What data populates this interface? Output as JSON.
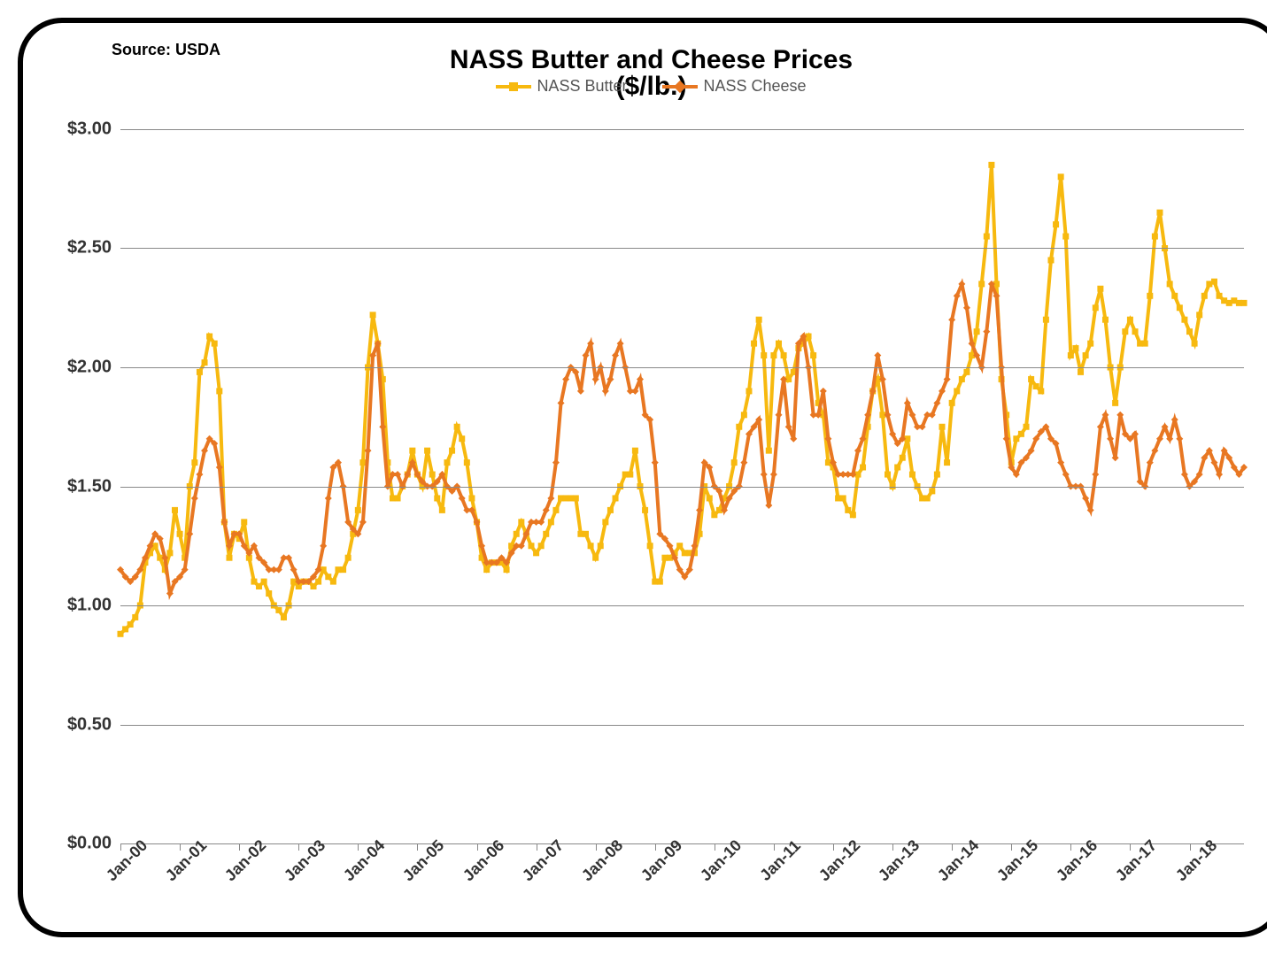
{
  "source_label": "Source: USDA",
  "title_line1": "NASS Butter and Cheese Prices",
  "title_line2": "($/lb.)",
  "legend": {
    "butter": "NASS Butter",
    "cheese": "NASS Cheese"
  },
  "chart": {
    "type": "line",
    "ylim": [
      0,
      3.0
    ],
    "ytick_step": 0.5,
    "ytick_labels": [
      "$0.00",
      "$0.50",
      "$1.00",
      "$1.50",
      "$2.00",
      "$2.50",
      "$3.00"
    ],
    "x_labels": [
      "Jan-00",
      "Jan-01",
      "Jan-02",
      "Jan-03",
      "Jan-04",
      "Jan-05",
      "Jan-06",
      "Jan-07",
      "Jan-08",
      "Jan-09",
      "Jan-10",
      "Jan-11",
      "Jan-12",
      "Jan-13",
      "Jan-14",
      "Jan-15",
      "Jan-16",
      "Jan-17",
      "Jan-18"
    ],
    "n_x_major": 19,
    "background_color": "#ffffff",
    "grid_color": "#888888",
    "border_color": "#000000",
    "border_radius": 50,
    "title_fontsize": 30,
    "label_fontsize": 20,
    "tick_fontsize": 18,
    "series": {
      "butter": {
        "color": "#f7b90f",
        "marker": "square",
        "marker_size": 7,
        "line_width": 4,
        "values": [
          0.88,
          0.9,
          0.92,
          0.95,
          1.0,
          1.18,
          1.22,
          1.25,
          1.2,
          1.15,
          1.22,
          1.4,
          1.3,
          1.2,
          1.5,
          1.6,
          1.98,
          2.02,
          2.13,
          2.1,
          1.9,
          1.35,
          1.2,
          1.3,
          1.28,
          1.35,
          1.2,
          1.1,
          1.08,
          1.1,
          1.05,
          1.0,
          0.98,
          0.95,
          1.0,
          1.1,
          1.08,
          1.1,
          1.1,
          1.08,
          1.1,
          1.15,
          1.12,
          1.1,
          1.15,
          1.15,
          1.2,
          1.3,
          1.4,
          1.6,
          2.0,
          2.22,
          2.1,
          1.95,
          1.6,
          1.45,
          1.45,
          1.5,
          1.55,
          1.65,
          1.55,
          1.5,
          1.65,
          1.55,
          1.45,
          1.4,
          1.6,
          1.65,
          1.75,
          1.7,
          1.6,
          1.45,
          1.35,
          1.2,
          1.15,
          1.18,
          1.18,
          1.18,
          1.15,
          1.25,
          1.3,
          1.35,
          1.3,
          1.25,
          1.22,
          1.25,
          1.3,
          1.35,
          1.4,
          1.45,
          1.45,
          1.45,
          1.45,
          1.3,
          1.3,
          1.25,
          1.2,
          1.25,
          1.35,
          1.4,
          1.45,
          1.5,
          1.55,
          1.55,
          1.65,
          1.5,
          1.4,
          1.25,
          1.1,
          1.1,
          1.2,
          1.2,
          1.22,
          1.25,
          1.22,
          1.22,
          1.22,
          1.3,
          1.5,
          1.45,
          1.38,
          1.4,
          1.45,
          1.5,
          1.6,
          1.75,
          1.8,
          1.9,
          2.1,
          2.2,
          2.05,
          1.65,
          2.05,
          2.1,
          2.05,
          1.95,
          1.98,
          2.08,
          2.1,
          2.13,
          2.05,
          1.85,
          1.8,
          1.6,
          1.58,
          1.45,
          1.45,
          1.4,
          1.38,
          1.55,
          1.58,
          1.75,
          1.9,
          1.95,
          1.8,
          1.55,
          1.5,
          1.58,
          1.62,
          1.7,
          1.55,
          1.5,
          1.45,
          1.45,
          1.48,
          1.55,
          1.75,
          1.6,
          1.85,
          1.9,
          1.95,
          1.98,
          2.05,
          2.15,
          2.35,
          2.55,
          2.85,
          2.35,
          1.95,
          1.8,
          1.6,
          1.7,
          1.72,
          1.75,
          1.95,
          1.92,
          1.9,
          2.2,
          2.45,
          2.6,
          2.8,
          2.55,
          2.05,
          2.08,
          1.98,
          2.05,
          2.1,
          2.25,
          2.33,
          2.2,
          2.0,
          1.85,
          2.0,
          2.15,
          2.2,
          2.15,
          2.1,
          2.1,
          2.3,
          2.55,
          2.65,
          2.5,
          2.35,
          2.3,
          2.25,
          2.2,
          2.15,
          2.1,
          2.22,
          2.3,
          2.35,
          2.36,
          2.3,
          2.28,
          2.27,
          2.28,
          2.27,
          2.27
        ]
      },
      "cheese": {
        "color": "#e87722",
        "marker": "diamond",
        "marker_size": 8,
        "line_width": 4,
        "values": [
          1.15,
          1.12,
          1.1,
          1.12,
          1.15,
          1.2,
          1.25,
          1.3,
          1.28,
          1.2,
          1.05,
          1.1,
          1.12,
          1.15,
          1.3,
          1.45,
          1.55,
          1.65,
          1.7,
          1.68,
          1.58,
          1.35,
          1.25,
          1.3,
          1.3,
          1.25,
          1.22,
          1.25,
          1.2,
          1.18,
          1.15,
          1.15,
          1.15,
          1.2,
          1.2,
          1.15,
          1.1,
          1.1,
          1.1,
          1.12,
          1.15,
          1.25,
          1.45,
          1.58,
          1.6,
          1.5,
          1.35,
          1.32,
          1.3,
          1.35,
          1.65,
          2.05,
          2.1,
          1.75,
          1.5,
          1.55,
          1.55,
          1.5,
          1.55,
          1.6,
          1.55,
          1.52,
          1.5,
          1.5,
          1.52,
          1.55,
          1.5,
          1.48,
          1.5,
          1.45,
          1.4,
          1.4,
          1.35,
          1.25,
          1.18,
          1.18,
          1.18,
          1.2,
          1.18,
          1.22,
          1.25,
          1.25,
          1.3,
          1.35,
          1.35,
          1.35,
          1.4,
          1.45,
          1.6,
          1.85,
          1.95,
          2.0,
          1.98,
          1.9,
          2.05,
          2.1,
          1.95,
          2.0,
          1.9,
          1.95,
          2.05,
          2.1,
          2.0,
          1.9,
          1.9,
          1.95,
          1.8,
          1.78,
          1.6,
          1.3,
          1.28,
          1.25,
          1.2,
          1.15,
          1.12,
          1.15,
          1.25,
          1.4,
          1.6,
          1.58,
          1.5,
          1.48,
          1.4,
          1.45,
          1.48,
          1.5,
          1.6,
          1.72,
          1.75,
          1.78,
          1.55,
          1.42,
          1.55,
          1.8,
          1.95,
          1.75,
          1.7,
          2.1,
          2.13,
          2.0,
          1.8,
          1.8,
          1.9,
          1.7,
          1.6,
          1.55,
          1.55,
          1.55,
          1.55,
          1.65,
          1.7,
          1.8,
          1.9,
          2.05,
          1.95,
          1.8,
          1.72,
          1.68,
          1.7,
          1.85,
          1.8,
          1.75,
          1.75,
          1.8,
          1.8,
          1.85,
          1.9,
          1.95,
          2.2,
          2.3,
          2.35,
          2.25,
          2.1,
          2.05,
          2.0,
          2.15,
          2.35,
          2.3,
          2.0,
          1.7,
          1.58,
          1.55,
          1.6,
          1.62,
          1.65,
          1.7,
          1.73,
          1.75,
          1.7,
          1.68,
          1.6,
          1.55,
          1.5,
          1.5,
          1.5,
          1.45,
          1.4,
          1.55,
          1.75,
          1.8,
          1.7,
          1.62,
          1.8,
          1.72,
          1.7,
          1.72,
          1.52,
          1.5,
          1.6,
          1.65,
          1.7,
          1.75,
          1.7,
          1.78,
          1.7,
          1.55,
          1.5,
          1.52,
          1.55,
          1.62,
          1.65,
          1.6,
          1.55,
          1.65,
          1.62,
          1.58,
          1.55,
          1.58
        ]
      }
    }
  }
}
